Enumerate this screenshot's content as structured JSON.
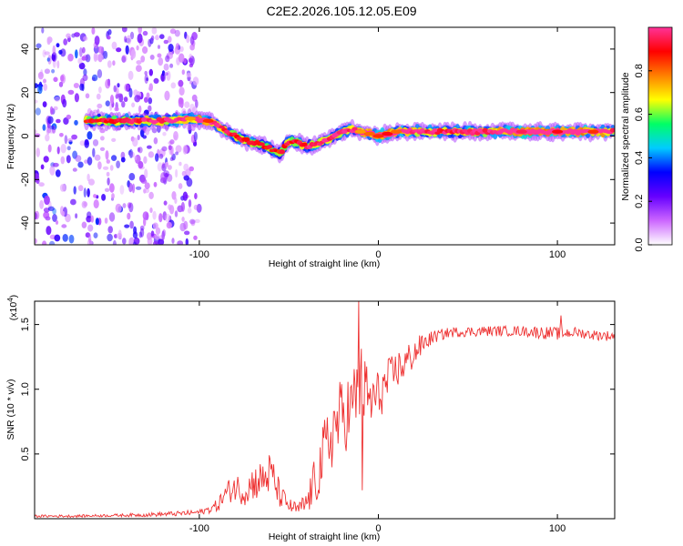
{
  "figure_title": "C2E2.2026.105.12.05.E09",
  "chart_data": [
    {
      "type": "heatmap",
      "title": "C2E2.2026.105.12.05.E09",
      "xlabel": "Height of straight line (km)",
      "ylabel": "Frequency (Hz)",
      "xlim": [
        -192,
        132
      ],
      "ylim": [
        -50,
        50
      ],
      "x_ticks": [
        -100,
        0,
        100
      ],
      "x_tick_labels": [
        "-100",
        "0",
        "100"
      ],
      "y_ticks": [
        -40,
        -20,
        0,
        20,
        40
      ],
      "y_tick_labels": [
        "-40",
        "-20",
        "0",
        "20",
        "40"
      ],
      "colorbar": {
        "label": "Normalized spectral amplitude",
        "range": [
          0,
          1
        ],
        "ticks": [
          0.0,
          0.2,
          0.4,
          0.6,
          0.8
        ],
        "tick_labels": [
          "0.0",
          "0.2",
          "0.4",
          "0.6",
          "0.8"
        ],
        "colormap": [
          "#ffffff",
          "#cc66ff",
          "#6600ff",
          "#0000ff",
          "#00ccff",
          "#00ff66",
          "#ffff00",
          "#ff8000",
          "#ff0000",
          "#ff3399"
        ]
      },
      "ridge": {
        "name": "dominant frequency",
        "x": [
          -163,
          -150,
          -135,
          -120,
          -105,
          -95,
          -90,
          -85,
          -80,
          -75,
          -70,
          -65,
          -60,
          -55,
          -50,
          -45,
          -40,
          -35,
          -30,
          -25,
          -20,
          -15,
          -10,
          -5,
          0,
          5,
          10,
          20,
          40,
          60,
          80,
          100,
          120,
          132
        ],
        "freq": [
          7,
          7,
          7,
          7,
          8,
          7,
          5,
          2,
          0,
          -2,
          -3,
          -4,
          -6,
          -8,
          -2,
          -3,
          -5,
          -4,
          -2,
          0,
          2,
          3,
          2,
          1,
          0,
          1,
          2,
          2,
          2,
          2,
          2,
          2,
          2,
          2
        ],
        "amplitude": [
          0.45,
          0.5,
          0.55,
          0.6,
          0.7,
          0.8,
          0.6,
          0.55,
          0.5,
          0.5,
          0.5,
          0.45,
          0.45,
          0.4,
          0.5,
          0.5,
          0.55,
          0.6,
          0.6,
          0.6,
          0.65,
          0.6,
          0.7,
          0.75,
          0.8,
          0.85,
          0.75,
          0.6,
          0.55,
          0.6,
          0.9,
          0.85,
          0.8,
          0.6
        ]
      },
      "noise_region": {
        "x_range": [
          -192,
          -100
        ],
        "freq_range": [
          -50,
          50
        ],
        "amplitude": 0.2
      }
    },
    {
      "type": "line",
      "xlabel": "Height of straight line (km)",
      "ylabel": "SNR (10 * v/v)",
      "y_multiplier_label": "(x10",
      "y_multiplier_exponent": "4",
      "y_multiplier_suffix": ")",
      "xlim": [
        -192,
        132
      ],
      "ylim": [
        0,
        1.68
      ],
      "x_ticks": [
        -100,
        0,
        100
      ],
      "x_tick_labels": [
        "-100",
        "0",
        "100"
      ],
      "y_ticks": [
        0.5,
        1.0,
        1.5
      ],
      "y_tick_labels": [
        "0.5",
        "1.0",
        "1.5"
      ],
      "series": [
        {
          "name": "SNR",
          "color": "#ee3333",
          "x": [
            -192,
            -170,
            -150,
            -130,
            -110,
            -100,
            -95,
            -90,
            -85,
            -80,
            -75,
            -70,
            -65,
            -60,
            -55,
            -50,
            -45,
            -40,
            -35,
            -30,
            -25,
            -20,
            -15,
            -10,
            -5,
            0,
            5,
            10,
            15,
            20,
            25,
            30,
            40,
            60,
            80,
            90,
            100,
            110,
            120,
            132
          ],
          "values": [
            0.02,
            0.02,
            0.025,
            0.03,
            0.04,
            0.05,
            0.07,
            0.1,
            0.2,
            0.25,
            0.2,
            0.28,
            0.3,
            0.35,
            0.18,
            0.1,
            0.07,
            0.12,
            0.3,
            0.5,
            0.7,
            0.8,
            0.85,
            1.05,
            0.9,
            0.95,
            1.05,
            1.15,
            1.2,
            1.28,
            1.35,
            1.4,
            1.44,
            1.45,
            1.45,
            1.44,
            1.43,
            1.44,
            1.42,
            1.41
          ],
          "noise_amplitude": [
            0.01,
            0.01,
            0.01,
            0.015,
            0.02,
            0.02,
            0.03,
            0.05,
            0.08,
            0.12,
            0.1,
            0.14,
            0.15,
            0.18,
            0.1,
            0.06,
            0.05,
            0.1,
            0.2,
            0.28,
            0.3,
            0.3,
            0.3,
            0.32,
            0.25,
            0.2,
            0.18,
            0.15,
            0.14,
            0.12,
            0.08,
            0.05,
            0.04,
            0.04,
            0.04,
            0.05,
            0.05,
            0.04,
            0.04,
            0.04
          ],
          "spikes": [
            {
              "x": -11,
              "value": 1.68
            },
            {
              "x": -9,
              "value": 0.22
            },
            {
              "x": 102,
              "value": 1.57
            }
          ]
        }
      ]
    }
  ]
}
